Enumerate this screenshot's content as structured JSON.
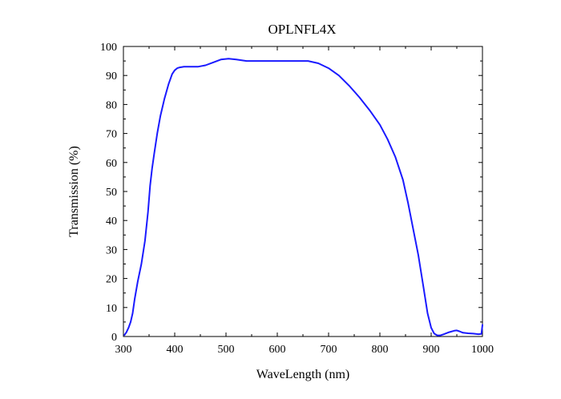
{
  "chart_data": {
    "type": "line",
    "title": "OPLNFL4X",
    "xlabel": "WaveLength (nm)",
    "ylabel": "Transmission (%)",
    "xlim": [
      300,
      1000
    ],
    "ylim": [
      0,
      100
    ],
    "xticks": [
      300,
      400,
      500,
      600,
      700,
      800,
      900,
      1000
    ],
    "yticks": [
      0,
      10,
      20,
      30,
      40,
      50,
      60,
      70,
      80,
      90,
      100
    ],
    "grid": false,
    "series": [
      {
        "color": "#1a1aff",
        "x": [
          302,
          306,
          310,
          314,
          318,
          322,
          328,
          335,
          342,
          348,
          352,
          356,
          360,
          366,
          372,
          380,
          388,
          395,
          400,
          405,
          410,
          418,
          430,
          445,
          460,
          475,
          490,
          505,
          520,
          540,
          560,
          580,
          600,
          620,
          640,
          660,
          680,
          700,
          720,
          740,
          760,
          780,
          800,
          815,
          830,
          845,
          855,
          865,
          875,
          885,
          893,
          900,
          906,
          912,
          918,
          925,
          935,
          945,
          950,
          955,
          962,
          972,
          982,
          992,
          998,
          1000
        ],
        "y": [
          0.5,
          1.5,
          3,
          5,
          8,
          13,
          19,
          25,
          33,
          43,
          52,
          58,
          63,
          70,
          76,
          82,
          87,
          90.5,
          91.8,
          92.5,
          92.8,
          93,
          93,
          93,
          93.5,
          94.5,
          95.5,
          95.8,
          95.5,
          95,
          95,
          95,
          95,
          95,
          95,
          95,
          94.2,
          92.5,
          90,
          86.5,
          82.5,
          78,
          73,
          68,
          62,
          54,
          46,
          37,
          28,
          17,
          8,
          3,
          1,
          0.4,
          0.4,
          0.8,
          1.5,
          2,
          2.1,
          1.8,
          1.3,
          1.1,
          1.0,
          0.8,
          0.9,
          4
        ]
      }
    ]
  }
}
